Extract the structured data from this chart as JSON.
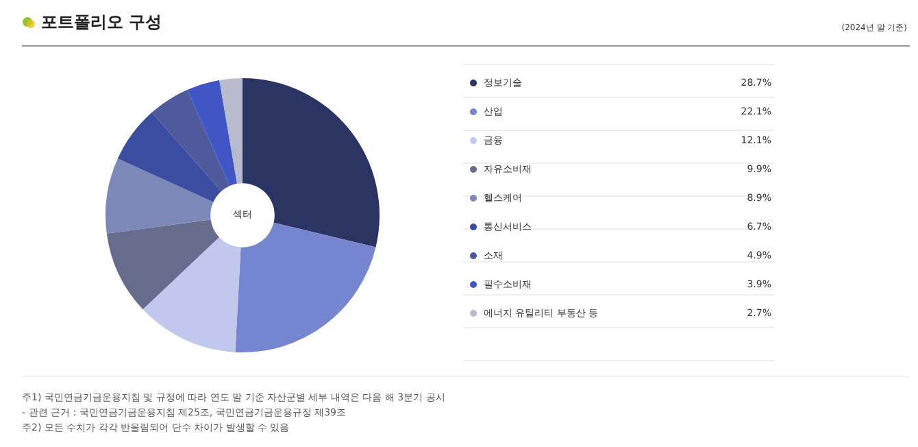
{
  "chart_data": {
    "type": "donut",
    "title": "포트폴리오 구성",
    "subtitle": "(2024년 말 기준)",
    "legend_title": "섹터",
    "categories": [
      "정보기술",
      "산업",
      "금융",
      "자유소비재",
      "헬스케어",
      "통신서비스",
      "소재",
      "필수소비재",
      "에너지 유틸리티 부동산 등"
    ],
    "values": [
      28.7,
      22.1,
      12.1,
      9.9,
      8.9,
      6.7,
      4.9,
      3.9,
      2.7
    ],
    "value_labels": [
      "28.7%",
      "22.1%",
      "12.1%",
      "9.9%",
      "8.9%",
      "6.7%",
      "4.9%",
      "3.9%",
      "2.7%"
    ],
    "colors": [
      "#2b3362",
      "#7585d0",
      "#c0c8ee",
      "#666d8c",
      "#7c88b8",
      "#3a4da0",
      "#4f5a9c",
      "#3f56c4",
      "#b8bace"
    ],
    "legend": "right",
    "annotations": [
      "주1) 국민연금기금운용지침 및 규정에 따라 연도 말 기준 자산군별 세부 내역은 다음 해 3분기 공시",
      "- 관련 근거 : 국민연금기금운용지침 제25조, 국민연금기금운용규정 제39조",
      "주2) 모든 수치가 각각 반올림되어 단수 차이가 발생할 수 있음"
    ]
  }
}
